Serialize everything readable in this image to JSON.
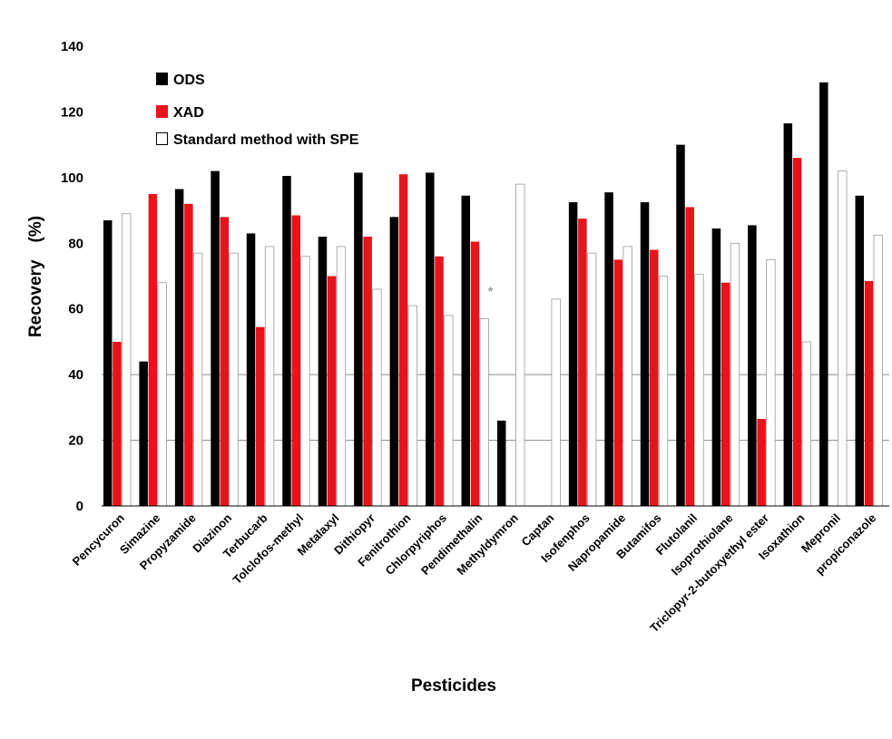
{
  "chart_data": {
    "type": "bar",
    "xlabel": "Pesticides",
    "ylabel": "Recovery　(%)",
    "ylim": [
      0,
      140
    ],
    "yticks": [
      "0",
      "20",
      "40",
      "60",
      "80",
      "100",
      "120",
      "140"
    ],
    "grid": "horizontal at 20 and 40",
    "legend_position": "top-left",
    "categories": [
      "Pencycuron",
      "Simazine",
      "Propyzamide",
      "Diazinon",
      "Terbucarb",
      "Tolclofos-methyl",
      "Metalaxyl",
      "Dithiopyr",
      "Fenitrothion",
      "Chlorpyriphos",
      "Pendimethalin",
      "Methyldymron",
      "Captan",
      "Isofenphos",
      "Napropamide",
      "Butamifos",
      "Flutolanil",
      "Isoprothiolane",
      "Triclopyr-2-butoxyethyl ester",
      "Isoxathion",
      "Mepronil",
      "propiconazole"
    ],
    "series": [
      {
        "name": "ODS",
        "color": "#000000",
        "values": [
          87,
          44,
          96.5,
          102,
          83,
          100.5,
          82,
          101.5,
          88,
          101.5,
          94.5,
          26,
          null,
          92.5,
          95.5,
          92.5,
          110,
          84.5,
          85.5,
          116.5,
          129,
          94.5
        ]
      },
      {
        "name": "XAD",
        "color": "#e8131b",
        "values": [
          50,
          95,
          92,
          88,
          54.5,
          88.5,
          70,
          82,
          101,
          76,
          80.5,
          null,
          null,
          87.5,
          75,
          78,
          91,
          68,
          26.5,
          106,
          null,
          68.5
        ]
      },
      {
        "name": "Standard method with SPE",
        "color": "#ffffff",
        "values": [
          89,
          68,
          77,
          77,
          79,
          76,
          79,
          66,
          61,
          58,
          57,
          98,
          63,
          77,
          79,
          70,
          70.5,
          80,
          75,
          50,
          102,
          82.5
        ]
      }
    ],
    "annotations": [
      {
        "text": "*",
        "category": "Pendimethalin"
      }
    ]
  }
}
